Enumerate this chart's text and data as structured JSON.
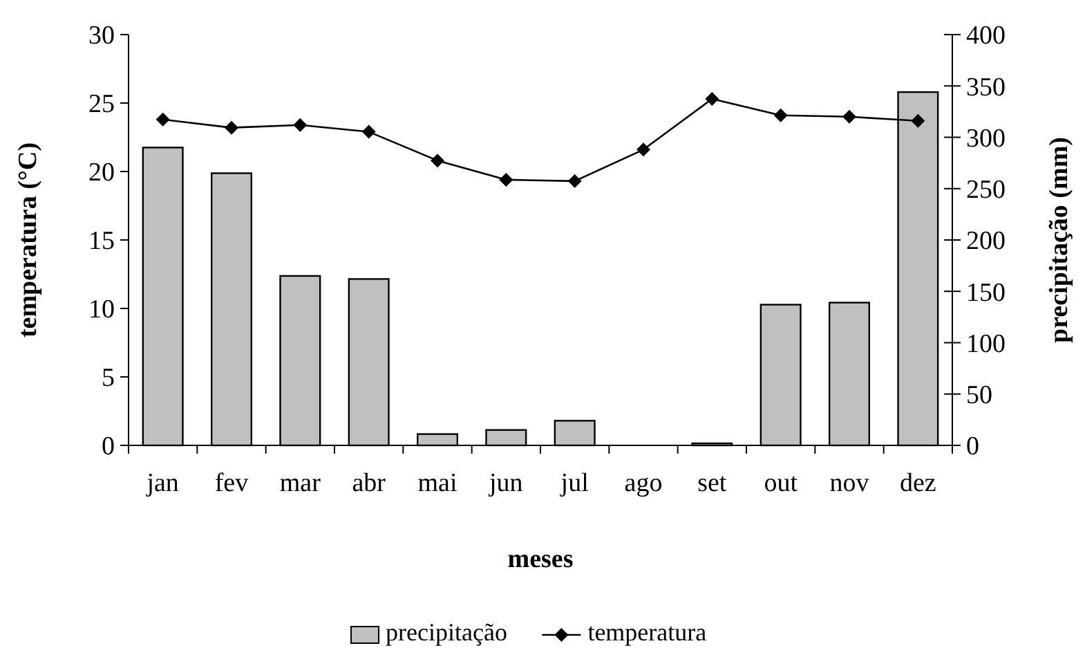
{
  "chart_data": {
    "type": "bar",
    "xlabel": "meses",
    "ylabel": "temperatura (°C)",
    "y2label": "precipitação (mm)",
    "categories": [
      "jan",
      "fev",
      "mar",
      "abr",
      "mai",
      "jun",
      "jul",
      "ago",
      "set",
      "out",
      "nov",
      "dez"
    ],
    "series": [
      {
        "name": "precipitação",
        "axis": "y2",
        "color": "#c0c0c0",
        "values": [
          290,
          265,
          165,
          162,
          11,
          15,
          24,
          0,
          2,
          137,
          139,
          344
        ]
      },
      {
        "name": "temperatura",
        "type": "line",
        "color": "#000000",
        "marker": "diamond",
        "values": [
          23.8,
          23.2,
          23.4,
          22.9,
          20.8,
          19.4,
          19.3,
          21.6,
          25.3,
          24.1,
          24.0,
          23.7
        ]
      }
    ],
    "ylim": [
      0,
      30
    ],
    "yticks": [
      0,
      5,
      10,
      15,
      20,
      25,
      30
    ],
    "y2lim": [
      0,
      400
    ],
    "y2ticks": [
      0,
      50,
      100,
      150,
      200,
      250,
      300,
      350,
      400
    ],
    "grid": false,
    "legend": "bottom"
  }
}
